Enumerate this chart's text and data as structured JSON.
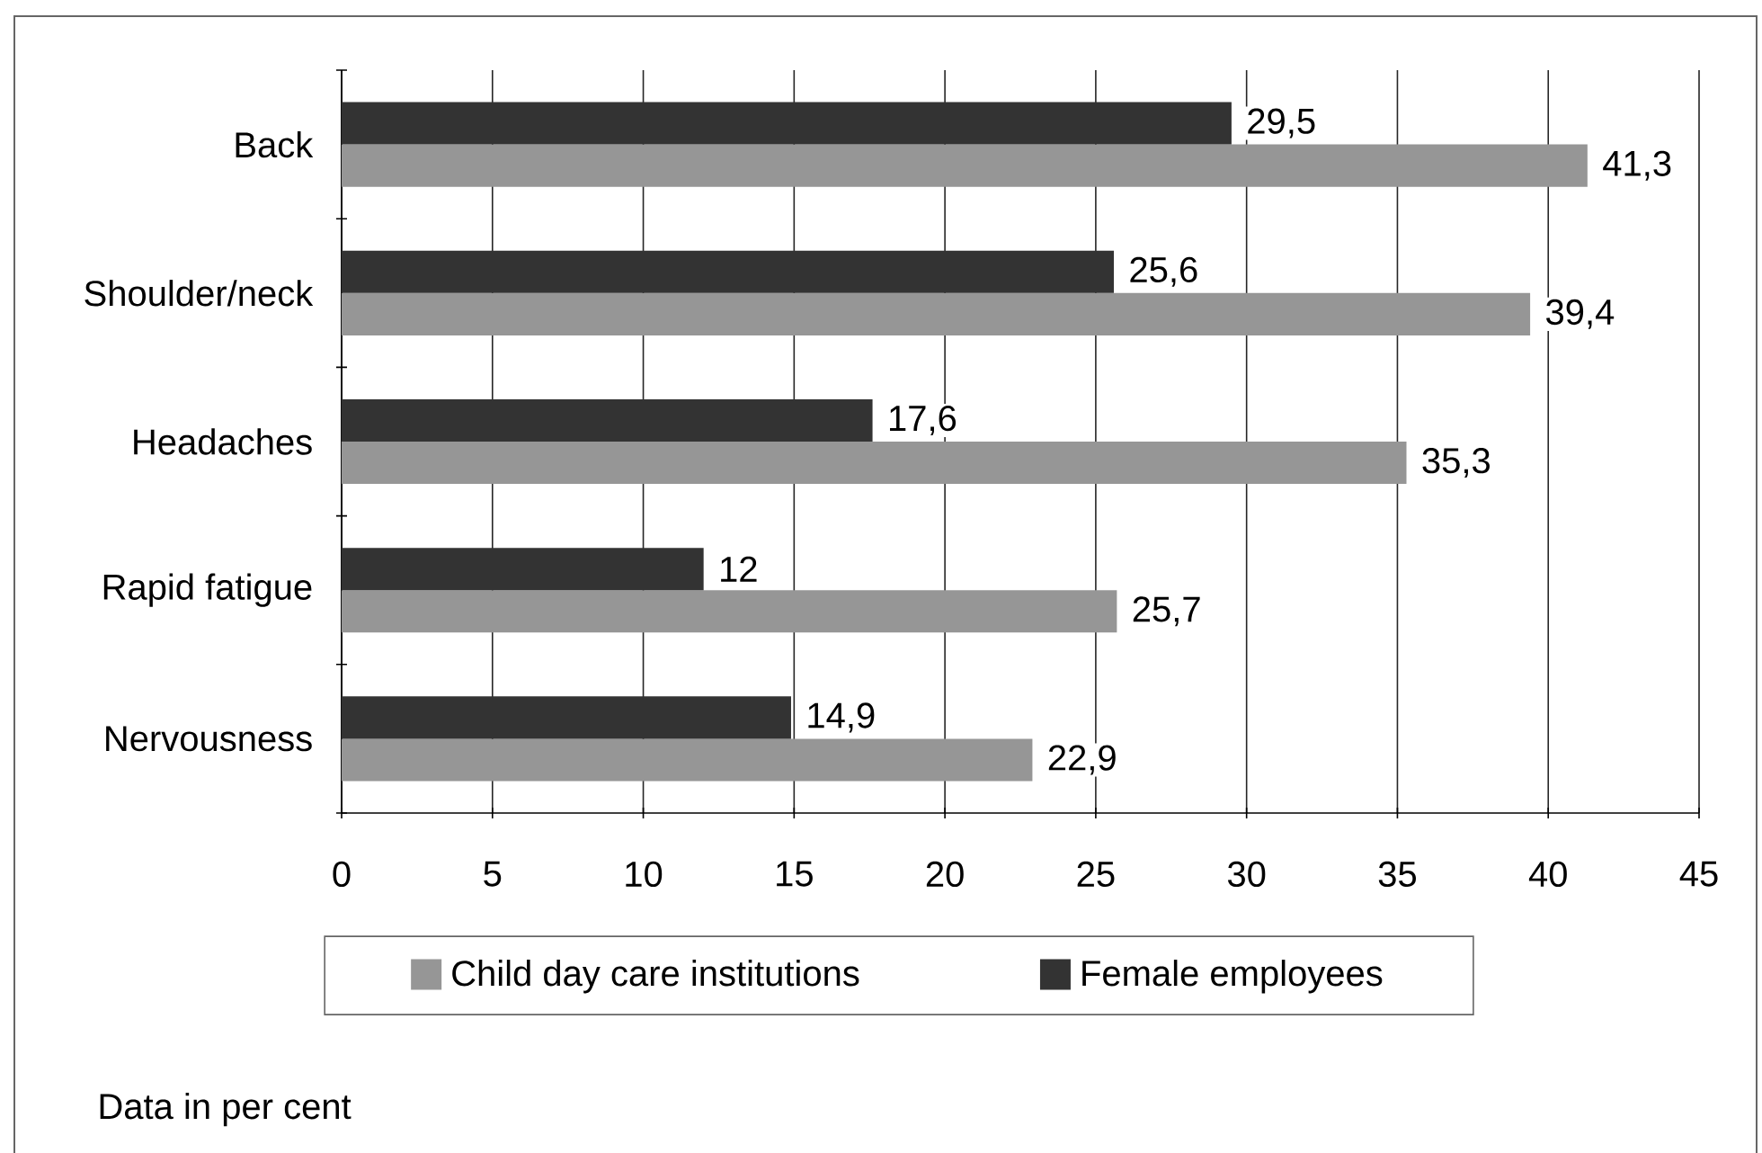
{
  "chart_data": {
    "type": "bar",
    "orientation": "horizontal",
    "categories": [
      "Back",
      "Shoulder/neck",
      "Headaches",
      "Rapid fatigue",
      "Nervousness"
    ],
    "series": [
      {
        "name": "Child day care institutions",
        "color": "#969696",
        "values": [
          41.3,
          39.4,
          35.3,
          25.7,
          22.9
        ],
        "value_labels": [
          "41,3",
          "39,4",
          "35,3",
          "25,7",
          "22,9"
        ]
      },
      {
        "name": "Female employees",
        "color": "#333333",
        "values": [
          29.5,
          25.6,
          17.6,
          12,
          14.9
        ],
        "value_labels": [
          "29,5",
          "25,6",
          "17,6",
          "12",
          "14,9"
        ]
      }
    ],
    "xlim": [
      0,
      45
    ],
    "xticks": [
      0,
      5,
      10,
      15,
      20,
      25,
      30,
      35,
      40,
      45
    ],
    "grid": "x",
    "legend": "bottom",
    "annotations": [
      "Data in per cent"
    ]
  }
}
